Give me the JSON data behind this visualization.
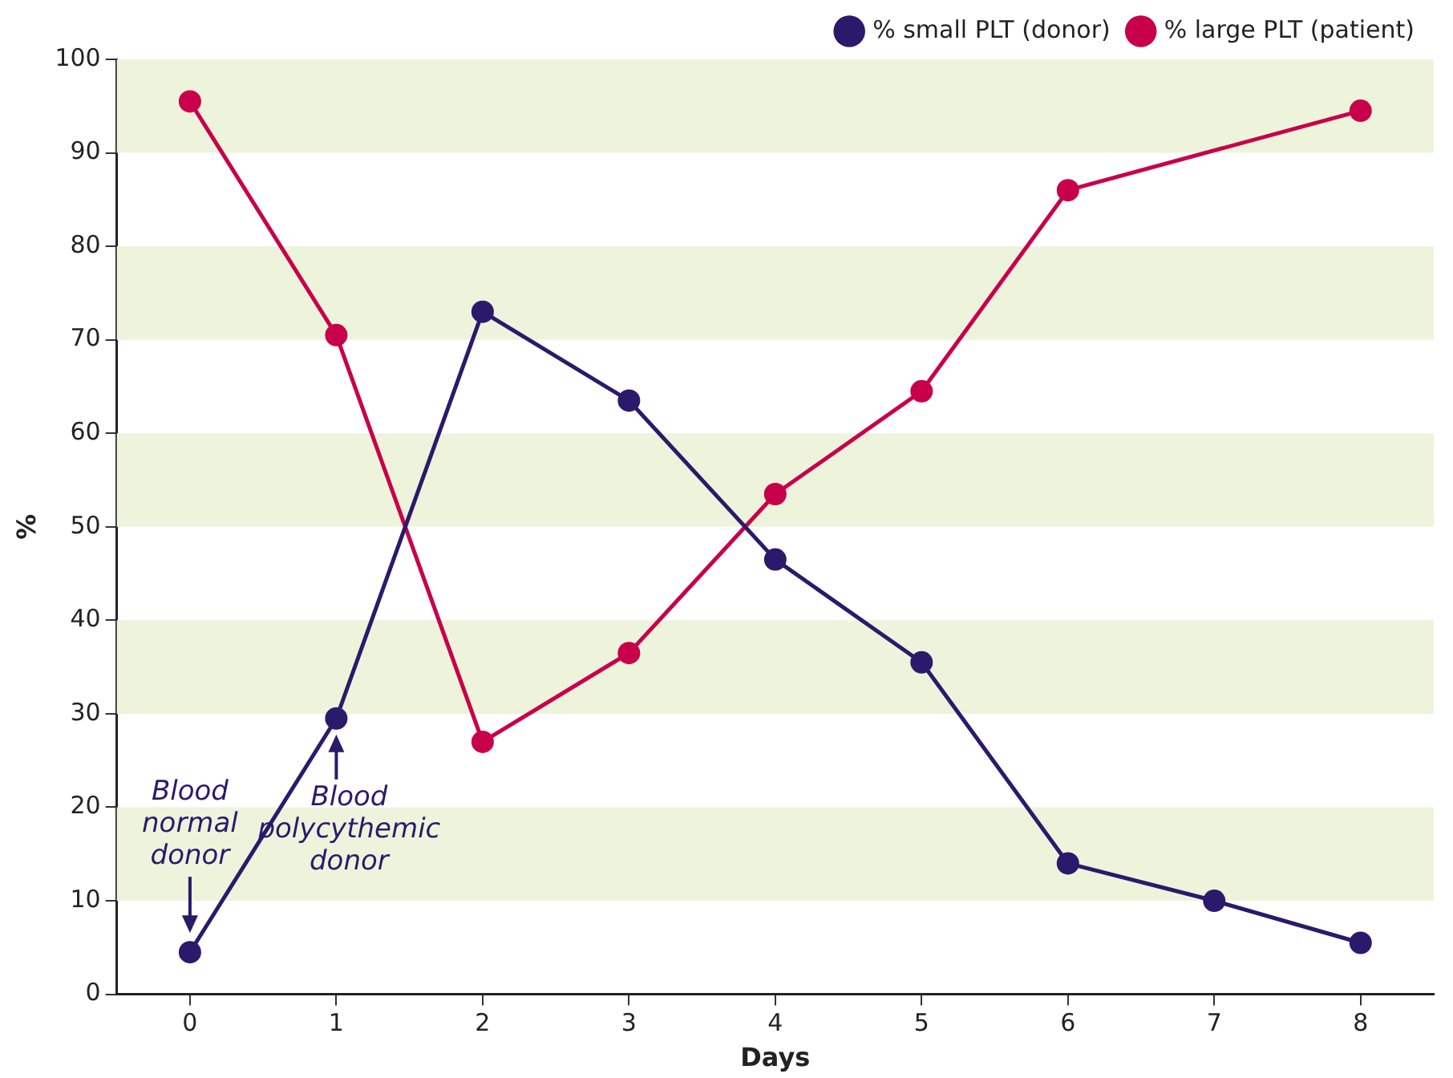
{
  "chart_data": {
    "type": "line",
    "xlabel": "Days",
    "ylabel": "%",
    "x": [
      0,
      1,
      2,
      3,
      4,
      5,
      6,
      7,
      8
    ],
    "xlim": [
      -0.5,
      8.5
    ],
    "xticks": [
      0,
      1,
      2,
      3,
      4,
      5,
      6,
      7,
      8
    ],
    "ylim": [
      0,
      100
    ],
    "yticks": [
      0,
      10,
      20,
      30,
      40,
      50,
      60,
      70,
      80,
      90,
      100
    ],
    "series": [
      {
        "name": "% small PLT (donor)",
        "color": "#2b1a6b",
        "values": [
          4.5,
          29.5,
          73,
          63.5,
          46.5,
          35.5,
          14,
          10,
          5.5
        ]
      },
      {
        "name": "% large PLT (patient)",
        "color": "#c8004b",
        "values": [
          95.5,
          70.5,
          27,
          36.5,
          53.5,
          64.5,
          86,
          null,
          94.5
        ]
      }
    ],
    "bands": [
      {
        "axis": "y",
        "from": 10,
        "to": 20,
        "color": "#eef3dc"
      },
      {
        "axis": "y",
        "from": 30,
        "to": 40,
        "color": "#eef3dc"
      },
      {
        "axis": "y",
        "from": 50,
        "to": 60,
        "color": "#eef3dc"
      },
      {
        "axis": "y",
        "from": 70,
        "to": 80,
        "color": "#eef3dc"
      },
      {
        "axis": "y",
        "from": 90,
        "to": 100,
        "color": "#eef3dc"
      }
    ],
    "annotations": [
      {
        "text": "Blood normal donor",
        "x": 0,
        "y": 4.5
      },
      {
        "text": "Blood polycythemic donor",
        "x": 1,
        "y": 29.5
      }
    ],
    "grid": false,
    "legend": "top right",
    "marker": "circle",
    "line_style": "solid"
  }
}
